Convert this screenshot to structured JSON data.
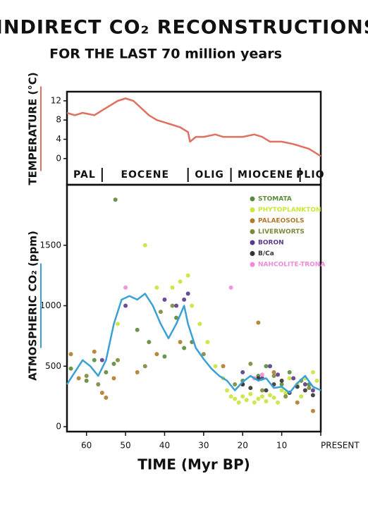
{
  "title": "INDIRECT CO₂ RECONSTRUCTIONS",
  "subtitle": "FOR THE LAST 70 million years",
  "chart_data": [
    {
      "type": "line",
      "y_label": "TEMPERATURE (°C)",
      "xlim": [
        65,
        0
      ],
      "ylim": [
        -1.5,
        13.9
      ],
      "yticks": [
        0,
        4,
        8,
        12
      ],
      "epochs": [
        {
          "name": "PAL",
          "start": 65,
          "end": 56
        },
        {
          "name": "EOCENE",
          "start": 56,
          "end": 34
        },
        {
          "name": "OLIG",
          "start": 34,
          "end": 23
        },
        {
          "name": "MIOCENE",
          "start": 23,
          "end": 5.3
        },
        {
          "name": "PLIO",
          "start": 5.3,
          "end": 0
        }
      ],
      "series": [
        {
          "color": "#e07060",
          "x": [
            65,
            63,
            61,
            58,
            56,
            54,
            52,
            50,
            48,
            46,
            44,
            42,
            40,
            38,
            36,
            34,
            33.5,
            32,
            30,
            27,
            25,
            22,
            20,
            17,
            15,
            13,
            10,
            7,
            5,
            3,
            1,
            0
          ],
          "values": [
            9.5,
            9,
            9.5,
            9,
            10,
            11,
            12,
            12.5,
            12,
            10.5,
            9,
            8,
            7.5,
            7,
            6.5,
            5.5,
            3.5,
            4.5,
            4.5,
            5,
            4.5,
            4.5,
            4.5,
            5,
            4.5,
            3.5,
            3.5,
            3,
            2.5,
            2,
            1,
            0.5
          ]
        }
      ]
    },
    {
      "type": "scatter",
      "y_label": "ATMOSPHERIC CO₂ (ppm)",
      "x_label": "TIME (Myr BP)",
      "xlim": [
        65,
        0
      ],
      "ylim": [
        0,
        2000
      ],
      "xticks": [
        60,
        50,
        40,
        30,
        20,
        10,
        {
          "value": 0,
          "label": "PRESENT"
        }
      ],
      "yticks": [
        0,
        500,
        1000,
        1500
      ],
      "series": [
        {
          "name": "STOMATA",
          "color": "#5a8a3a",
          "x": [
            64,
            60,
            58,
            55,
            53,
            52.6,
            47,
            44,
            40,
            37,
            35,
            33,
            20,
            16,
            14,
            10,
            8,
            3
          ],
          "values": [
            480,
            380,
            550,
            450,
            520,
            1877,
            800,
            700,
            580,
            900,
            650,
            700,
            380,
            420,
            500,
            350,
            450,
            350
          ]
        },
        {
          "name": "PHYTOPLANKTON",
          "color": "#c8e63c",
          "x": [
            52,
            45,
            42,
            38,
            36,
            34,
            33,
            31,
            29,
            27,
            25,
            24,
            23,
            22,
            21,
            20,
            19,
            18,
            17,
            16,
            15,
            14,
            13,
            12,
            11,
            10,
            9,
            8,
            6,
            5,
            4,
            2,
            1
          ],
          "values": [
            850,
            1500,
            1150,
            1150,
            1200,
            1250,
            1000,
            850,
            700,
            500,
            400,
            300,
            250,
            230,
            200,
            250,
            220,
            270,
            200,
            230,
            250,
            210,
            260,
            240,
            200,
            300,
            280,
            400,
            350,
            250,
            400,
            450,
            380
          ]
        },
        {
          "name": "PALAEOSOLS",
          "color": "#b07a2e",
          "x": [
            64,
            62,
            58,
            56,
            55,
            53,
            47,
            42,
            36,
            25,
            20,
            16,
            12,
            6,
            2
          ],
          "values": [
            600,
            400,
            620,
            280,
            240,
            400,
            450,
            600,
            700,
            500,
            350,
            860,
            450,
            200,
            130
          ]
        },
        {
          "name": "LIVERWORTS",
          "color": "#7a8a3a",
          "x": [
            60,
            57,
            52,
            45,
            41,
            38,
            30,
            22,
            18,
            15,
            12,
            9,
            5,
            3
          ],
          "values": [
            420,
            350,
            550,
            500,
            950,
            1000,
            600,
            350,
            520,
            300,
            420,
            250,
            380,
            320
          ]
        },
        {
          "name": "BORON",
          "color": "#5a3a8a",
          "x": [
            56,
            50,
            40,
            37,
            35,
            34,
            20,
            15,
            13,
            11,
            7,
            4,
            2
          ],
          "values": [
            550,
            1000,
            1050,
            1000,
            1050,
            1100,
            450,
            400,
            500,
            430,
            400,
            350,
            300
          ]
        },
        {
          "name": "B/Ca",
          "color": "#333333",
          "x": [
            20,
            18,
            16,
            14,
            12,
            10,
            8,
            6,
            4,
            2
          ],
          "values": [
            350,
            320,
            400,
            300,
            350,
            380,
            280,
            330,
            300,
            260
          ]
        },
        {
          "name": "NAHCOLITE-TRONA",
          "color": "#f08ad8",
          "x": [
            50,
            23,
            17,
            15
          ],
          "values": [
            1150,
            1150,
            400,
            430
          ]
        },
        {
          "kind": "line",
          "color": "#3aa0d8",
          "x": [
            65,
            63,
            61,
            59,
            57,
            55,
            53,
            51,
            49,
            47,
            45,
            43,
            41,
            39,
            37,
            35,
            34,
            32,
            30,
            28,
            26,
            24,
            22,
            20,
            18,
            16,
            14,
            12,
            10,
            8,
            6,
            4,
            2,
            0
          ],
          "values": [
            350,
            450,
            550,
            500,
            420,
            550,
            850,
            1050,
            1080,
            1050,
            1100,
            1000,
            850,
            730,
            850,
            1000,
            850,
            650,
            560,
            480,
            420,
            380,
            300,
            370,
            420,
            380,
            400,
            320,
            330,
            280,
            360,
            420,
            330,
            300
          ]
        }
      ]
    }
  ]
}
